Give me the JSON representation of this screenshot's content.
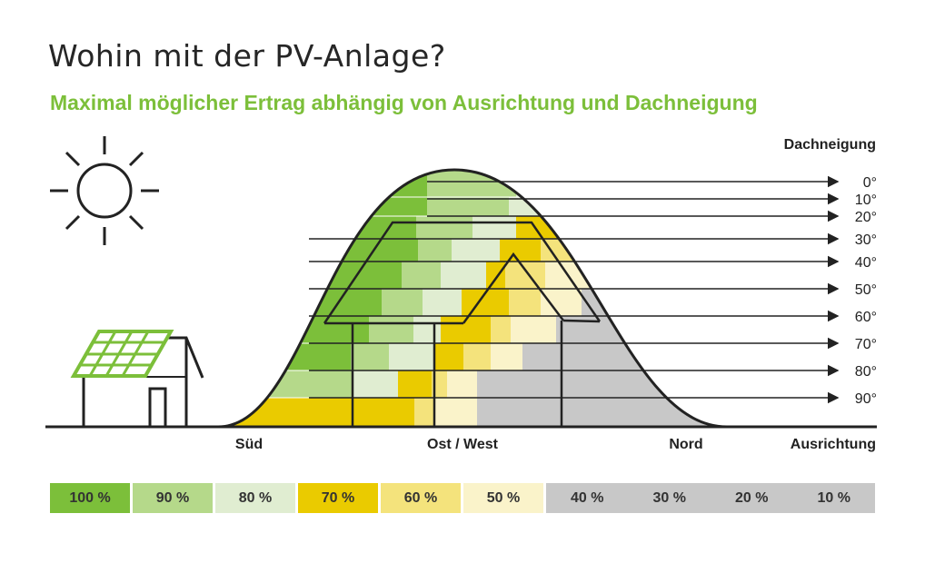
{
  "title": "Wohin mit der PV-Anlage?",
  "subtitle": "Maximal möglicher Ertrag abhängig von Ausrichtung und Dachneigung",
  "axis": {
    "tilt_label": "Dachneigung",
    "orientation_label": "Ausrichtung",
    "orientation_ticks": [
      "Süd",
      "Ost / West",
      "Nord"
    ],
    "tilt_ticks": [
      "0°",
      "10°",
      "20°",
      "30°",
      "40°",
      "50°",
      "60°",
      "70°",
      "80°",
      "90°"
    ]
  },
  "legend": [
    {
      "label": "100 %",
      "color": "#7cbf3a"
    },
    {
      "label": "90 %",
      "color": "#b5d98a"
    },
    {
      "label": "80 %",
      "color": "#e0edd1"
    },
    {
      "label": "70 %",
      "color": "#eacb00"
    },
    {
      "label": "60 %",
      "color": "#f4e37c"
    },
    {
      "label": "50 %",
      "color": "#faf3ca"
    },
    {
      "label": "40 %",
      "color": "#c8c8c8"
    },
    {
      "label": "30 %",
      "color": "#c8c8c8"
    },
    {
      "label": "20 %",
      "color": "#c8c8c8"
    },
    {
      "label": "10 %",
      "color": "#c8c8c8"
    }
  ],
  "icons": [
    "sun-icon",
    "house-with-solar-panel-icon"
  ]
}
